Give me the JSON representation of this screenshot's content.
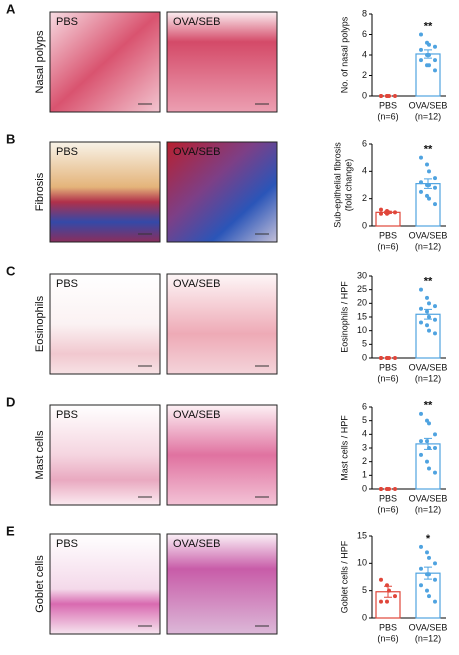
{
  "panels": [
    {
      "letter": "A",
      "label": "Nasal polyps",
      "images": [
        "PBS",
        "OVA/SEB"
      ]
    },
    {
      "letter": "B",
      "label": "Fibrosis",
      "images": [
        "PBS",
        "OVA/SEB"
      ]
    },
    {
      "letter": "C",
      "label": "Eosinophils",
      "images": [
        "PBS",
        "OVA/SEB"
      ]
    },
    {
      "letter": "D",
      "label": "Mast cells",
      "images": [
        "PBS",
        "OVA/SEB"
      ]
    },
    {
      "letter": "E",
      "label": "Goblet cells",
      "images": [
        "PBS",
        "OVA/SEB"
      ]
    }
  ],
  "chart_data": [
    {
      "type": "bar",
      "ylabel": [
        "No. of nasal polyps"
      ],
      "categories": [
        "PBS",
        "OVA/SEB"
      ],
      "category_notes": [
        "(n=6)",
        "(n=12)"
      ],
      "colors": [
        "#e0463a",
        "#4fa3e0"
      ],
      "values": [
        0,
        4.1
      ],
      "errors": [
        0,
        0.4
      ],
      "points": [
        [
          0,
          0,
          0,
          0,
          0,
          0
        ],
        [
          6,
          5.2,
          5,
          4.8,
          4.5,
          4,
          4,
          3.5,
          3.5,
          3,
          3,
          2.5
        ]
      ],
      "annotation": "**",
      "ylim": [
        0,
        8
      ],
      "yticks": [
        0,
        2,
        4,
        6,
        8
      ]
    },
    {
      "type": "bar",
      "ylabel": [
        "Sub-epithelial fibrosis",
        "(fold change)"
      ],
      "categories": [
        "PBS",
        "OVA/SEB"
      ],
      "category_notes": [
        "(n=6)",
        "(n=12)"
      ],
      "colors": [
        "#e0463a",
        "#4fa3e0"
      ],
      "values": [
        1,
        3.1
      ],
      "errors": [
        0.08,
        0.35
      ],
      "points": [
        [
          1.2,
          1.1,
          1,
          1,
          0.9,
          0.9
        ],
        [
          5,
          4.5,
          4,
          3.5,
          3.2,
          3,
          3,
          2.8,
          2.5,
          2.2,
          2,
          1.6
        ]
      ],
      "annotation": "**",
      "ylim": [
        0,
        6
      ],
      "yticks": [
        0,
        2,
        4,
        6
      ]
    },
    {
      "type": "bar",
      "ylabel": [
        "Eosinophils / HPF"
      ],
      "categories": [
        "PBS",
        "OVA/SEB"
      ],
      "category_notes": [
        "(n=6)",
        "(n=12)"
      ],
      "colors": [
        "#e0463a",
        "#4fa3e0"
      ],
      "values": [
        0,
        16
      ],
      "errors": [
        0,
        1.8
      ],
      "points": [
        [
          0,
          0,
          0,
          0,
          0,
          0
        ],
        [
          25,
          22,
          20,
          19,
          18,
          17,
          15,
          14,
          13,
          12,
          10,
          9
        ]
      ],
      "annotation": "**",
      "ylim": [
        0,
        30
      ],
      "yticks": [
        0,
        5,
        10,
        15,
        20,
        25,
        30
      ]
    },
    {
      "type": "bar",
      "ylabel": [
        "Mast cells / HPF"
      ],
      "categories": [
        "PBS",
        "OVA/SEB"
      ],
      "category_notes": [
        "(n=6)",
        "(n=12)"
      ],
      "colors": [
        "#e0463a",
        "#4fa3e0"
      ],
      "values": [
        0,
        3.3
      ],
      "errors": [
        0,
        0.4
      ],
      "points": [
        [
          0,
          0,
          0,
          0,
          0,
          0
        ],
        [
          5.5,
          5,
          4.8,
          4,
          3.5,
          3.5,
          3,
          3,
          2.5,
          2,
          1.5,
          1.2
        ]
      ],
      "annotation": "**",
      "ylim": [
        0,
        6
      ],
      "yticks": [
        0,
        1,
        2,
        3,
        4,
        5,
        6
      ]
    },
    {
      "type": "bar",
      "ylabel": [
        "Goblet cells / HPF"
      ],
      "categories": [
        "PBS",
        "OVA/SEB"
      ],
      "category_notes": [
        "(n=6)",
        "(n=12)"
      ],
      "colors": [
        "#e0463a",
        "#4fa3e0"
      ],
      "values": [
        4.8,
        8.2
      ],
      "errors": [
        1,
        1.1
      ],
      "points": [
        [
          7,
          6,
          5,
          4,
          3,
          3
        ],
        [
          13,
          12,
          11,
          10,
          9,
          8,
          8,
          7,
          6,
          5,
          4,
          3
        ]
      ],
      "annotation": "*",
      "ylim": [
        0,
        15
      ],
      "yticks": [
        0,
        5,
        10,
        15
      ]
    }
  ]
}
